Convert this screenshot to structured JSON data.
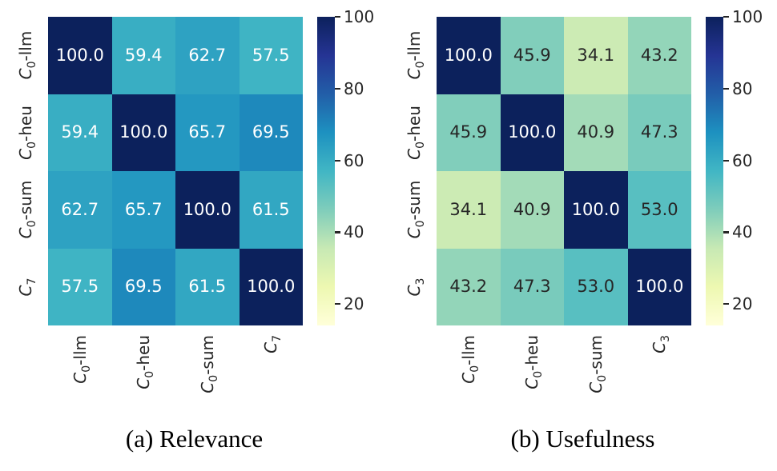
{
  "colors": {
    "background": "#ffffff",
    "annotation_dark": "#262626",
    "annotation_light": "#ffffff",
    "tick_label": "#262626",
    "caption": "#000000"
  },
  "colormap": {
    "name": "YlGnBu",
    "stops": [
      "#ffffd9",
      "#edf8b1",
      "#c7e9b4",
      "#7fcdbb",
      "#41b6c4",
      "#1d91c0",
      "#225ea8",
      "#253494",
      "#0c215c"
    ],
    "vmin": 14,
    "vmax": 100
  },
  "chart_data": [
    {
      "type": "heatmap",
      "title": "(a) Relevance",
      "xlabel": "",
      "ylabel": "",
      "labels": [
        {
          "base": "C",
          "sub": "0",
          "rest": "-llm"
        },
        {
          "base": "C",
          "sub": "0",
          "rest": "-heu"
        },
        {
          "base": "C",
          "sub": "0",
          "rest": "-sum"
        },
        {
          "base": "C",
          "sub": "7",
          "rest": ""
        }
      ],
      "values": [
        [
          100.0,
          59.4,
          62.7,
          57.5
        ],
        [
          59.4,
          100.0,
          65.7,
          69.5
        ],
        [
          62.7,
          65.7,
          100.0,
          61.5
        ],
        [
          57.5,
          69.5,
          61.5,
          100.0
        ]
      ],
      "value_decimals": 1,
      "colorbar_ticks": [
        20,
        40,
        60,
        80,
        100
      ],
      "colorbar_position": "right",
      "grid": false
    },
    {
      "type": "heatmap",
      "title": "(b) Usefulness",
      "xlabel": "",
      "ylabel": "",
      "labels": [
        {
          "base": "C",
          "sub": "0",
          "rest": "-llm"
        },
        {
          "base": "C",
          "sub": "0",
          "rest": "-heu"
        },
        {
          "base": "C",
          "sub": "0",
          "rest": "-sum"
        },
        {
          "base": "C",
          "sub": "3",
          "rest": ""
        }
      ],
      "values": [
        [
          100.0,
          45.9,
          34.1,
          43.2
        ],
        [
          45.9,
          100.0,
          40.9,
          47.3
        ],
        [
          34.1,
          40.9,
          100.0,
          53.0
        ],
        [
          43.2,
          47.3,
          53.0,
          100.0
        ]
      ],
      "value_decimals": 1,
      "colorbar_ticks": [
        20,
        40,
        60,
        80,
        100
      ],
      "colorbar_position": "right",
      "grid": false
    }
  ]
}
